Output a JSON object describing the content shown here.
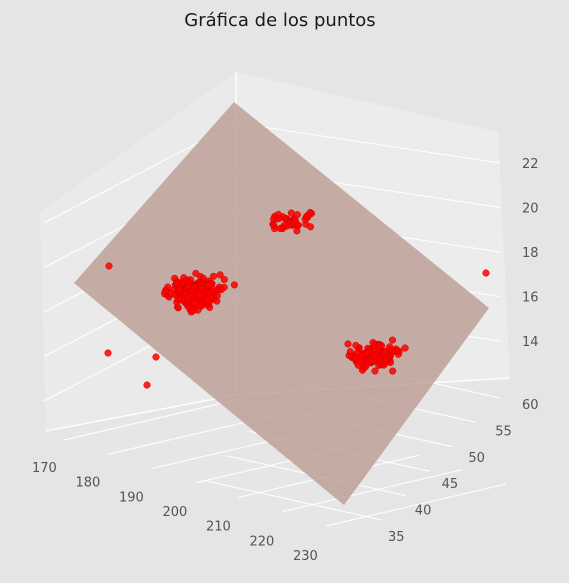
{
  "chart_data": {
    "type": "scatter",
    "title": "Gráfica de los puntos",
    "xlabel": "",
    "ylabel": "",
    "zlabel": "",
    "x_ticks": [
      "170",
      "180",
      "190",
      "200",
      "210",
      "220",
      "230"
    ],
    "y_ticks": [
      "35",
      "40",
      "45",
      "50",
      "55",
      "60"
    ],
    "z_ticks": [
      "14",
      "16",
      "18",
      "20",
      "22"
    ],
    "xlim": [
      168,
      232
    ],
    "ylim": [
      31,
      62
    ],
    "zlim": [
      12.5,
      22.5
    ],
    "grid": true,
    "point_color": "#ff0000",
    "plane_color": "#bc8f8f",
    "background_color": "#e5e5e5",
    "pane_color": "#ebebeb",
    "plane": {
      "description": "fitted regression plane",
      "corners_z": [
        17.0,
        22.0,
        15.5,
        12.5
      ]
    },
    "clusters": [
      {
        "name": "",
        "x_center": 185,
        "y_center": 37,
        "z_center": 16.5,
        "count": 200
      },
      {
        "name": "",
        "x_center": 222,
        "y_center": 48,
        "z_center": 15.0,
        "count": 120
      },
      {
        "name": "",
        "x_center": 178,
        "y_center": 52,
        "z_center": 21.0,
        "count": 40
      }
    ]
  }
}
